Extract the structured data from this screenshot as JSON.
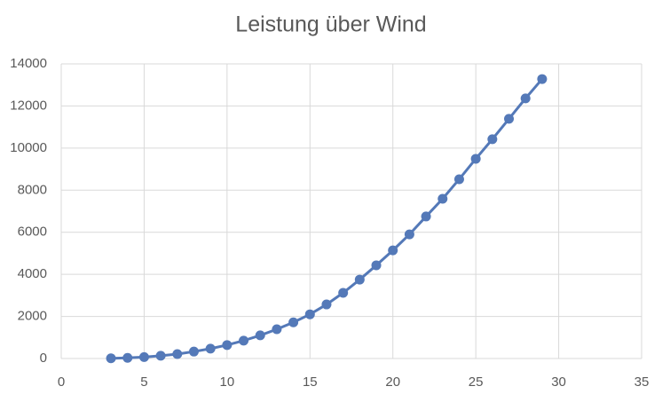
{
  "chart_data": {
    "type": "line",
    "title": "Leistung über Wind",
    "x": [
      3,
      4,
      5,
      6,
      7,
      8,
      9,
      10,
      11,
      12,
      13,
      14,
      15,
      16,
      17,
      18,
      19,
      20,
      21,
      22,
      23,
      24,
      25,
      26,
      27,
      28,
      29
    ],
    "series": [
      {
        "color": "#5479b8",
        "values": [
          10,
          30,
          70,
          130,
          210,
          330,
          470,
          640,
          850,
          1100,
          1390,
          1720,
          2100,
          2570,
          3120,
          3750,
          4430,
          5140,
          5900,
          6750,
          7590,
          8520,
          9490,
          10420,
          11390,
          12360,
          13280
        ]
      }
    ],
    "xlim": [
      0,
      35
    ],
    "xticks": [
      0,
      5,
      10,
      15,
      20,
      25,
      30,
      35
    ],
    "ylim": [
      0,
      14000
    ],
    "yticks": [
      0,
      2000,
      4000,
      6000,
      8000,
      10000,
      12000,
      14000
    ],
    "grid": true,
    "markers": true
  }
}
